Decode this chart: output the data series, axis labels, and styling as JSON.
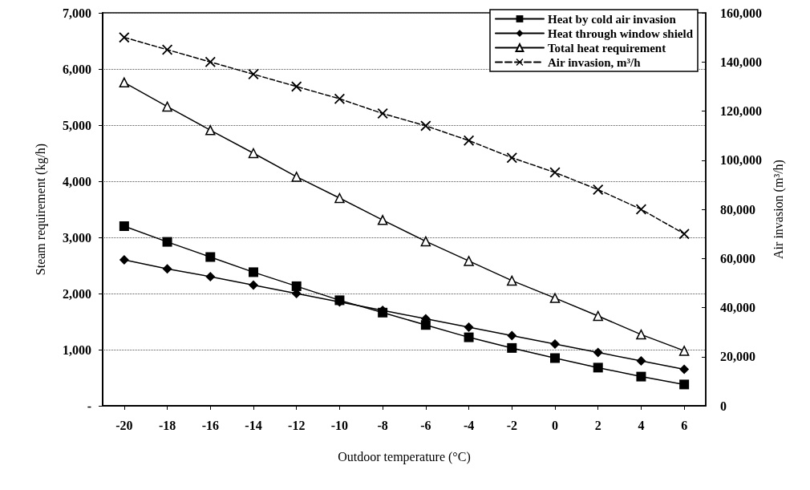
{
  "chart_data": {
    "type": "line",
    "xlabel": "Outdoor temperature (°C)",
    "ylabel": "Steam requirement (kg/h)",
    "y2label": "Air invasion (m³/h)",
    "x": [
      -20,
      -18,
      -16,
      -14,
      -12,
      -10,
      -8,
      -6,
      -4,
      -2,
      0,
      2,
      4,
      6
    ],
    "xlim": [
      -21,
      7
    ],
    "xticks": [
      -20,
      -18,
      -16,
      -14,
      -12,
      -10,
      -8,
      -6,
      -4,
      -2,
      0,
      2,
      4,
      6
    ],
    "ylim": [
      0,
      7000
    ],
    "yticks": [
      {
        "value": 0,
        "label": "-"
      },
      {
        "value": 1000,
        "label": "1,000"
      },
      {
        "value": 2000,
        "label": "2,000"
      },
      {
        "value": 3000,
        "label": "3,000"
      },
      {
        "value": 4000,
        "label": "4,000"
      },
      {
        "value": 5000,
        "label": "5,000"
      },
      {
        "value": 6000,
        "label": "6,000"
      },
      {
        "value": 7000,
        "label": "7,000"
      }
    ],
    "y2lim": [
      0,
      160000
    ],
    "y2ticks": [
      0,
      {
        "value": 20000,
        "label": "20,000"
      },
      {
        "value": 40000,
        "label": "40,000"
      },
      {
        "value": 60000,
        "label": "60,000"
      },
      {
        "value": 80000,
        "label": "80,000"
      },
      {
        "value": 100000,
        "label": "100,000"
      },
      {
        "value": 120000,
        "label": "120,000"
      },
      {
        "value": 140000,
        "label": "140,000"
      },
      {
        "value": 160000,
        "label": "160,000"
      }
    ],
    "grid": "y",
    "legend": "top right",
    "series": [
      {
        "name": "Heat by cold air invasion",
        "color": "#000000",
        "marker": "square",
        "line_style": "solid",
        "values": [
          3200,
          2920,
          2650,
          2380,
          2130,
          1880,
          1660,
          1440,
          1220,
          1030,
          850,
          680,
          520,
          380
        ]
      },
      {
        "name": "Heat through window shield",
        "color": "#000000",
        "marker": "diamond",
        "line_style": "solid",
        "values": [
          2600,
          2440,
          2300,
          2150,
          2000,
          1850,
          1700,
          1550,
          1400,
          1250,
          1100,
          950,
          800,
          650
        ]
      },
      {
        "name": "Total heat requirement",
        "color": "#000000",
        "marker": "triangle",
        "line_style": "solid",
        "values": [
          5760,
          5330,
          4910,
          4500,
          4080,
          3700,
          3310,
          2930,
          2580,
          2230,
          1920,
          1600,
          1270,
          980
        ]
      },
      {
        "name": "Air invasion, m³/h",
        "color": "#000000",
        "marker": "cross",
        "line_style": "dashed",
        "axis": "y2",
        "values": [
          150000,
          145000,
          140000,
          135000,
          130000,
          125000,
          119000,
          114000,
          108000,
          101000,
          95000,
          88000,
          80000,
          70000
        ]
      }
    ]
  }
}
